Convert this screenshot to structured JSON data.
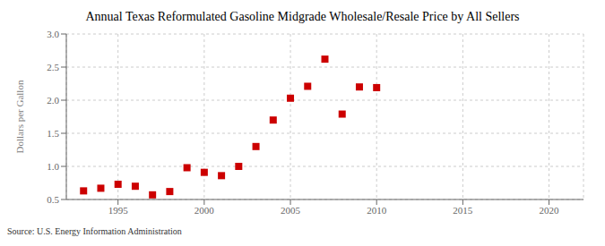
{
  "chart_data": {
    "type": "scatter",
    "title": "Annual Texas Reformulated Gasoline Midgrade Wholesale/Resale Price by All Sellers",
    "ylabel": "Dollars per Gallon",
    "source": "Source: U.S. Energy Information Administration",
    "x": [
      1993,
      1994,
      1995,
      1996,
      1997,
      1998,
      1999,
      2000,
      2001,
      2002,
      2003,
      2004,
      2005,
      2006,
      2007,
      2008,
      2009,
      2010
    ],
    "values": [
      0.63,
      0.67,
      0.73,
      0.7,
      0.57,
      0.62,
      0.98,
      0.91,
      0.86,
      1.0,
      1.3,
      1.7,
      2.03,
      2.21,
      2.62,
      1.79,
      2.2,
      2.19
    ],
    "color": "#cc0000",
    "marker": "square",
    "xlim": [
      1992,
      2022
    ],
    "ylim": [
      0.5,
      3.0
    ],
    "xticks": [
      1995,
      2000,
      2005,
      2010,
      2015,
      2020
    ],
    "yticks": [
      0.5,
      {
        "value": 1.0,
        "label": "1.0"
      },
      1.5,
      {
        "value": 2.0,
        "label": "2.0"
      },
      2.5,
      {
        "value": 3.0,
        "label": "3.0"
      }
    ],
    "grid": true
  }
}
